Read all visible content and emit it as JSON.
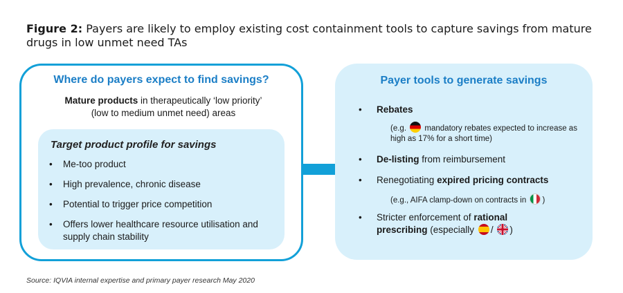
{
  "figure": {
    "label": "Figure 2:",
    "title": "Payers are likely to employ existing cost containment tools to capture savings from mature drugs in low unmet need TAs"
  },
  "left_panel": {
    "heading": "Where do payers expect to find savings?",
    "desc_bold": "Mature products",
    "desc_rest": " in therapeutically ‘low priority’ (low to medium unmet need) areas",
    "inner": {
      "heading": "Target product profile for savings",
      "items": [
        "Me-too product",
        "High prevalence, chronic disease",
        "Potential to trigger price competition",
        "Offers lower healthcare resource utilisation and supply chain stability"
      ]
    }
  },
  "right_panel": {
    "heading": "Payer tools to generate savings",
    "rebates": {
      "label": "Rebates",
      "sub_pre": "(e.g. ",
      "sub_post": " mandatory rebates expected to increase as high as 17% for a short time)"
    },
    "delisting": {
      "bold": "De-listing",
      "rest": " from reimbursement"
    },
    "renegotiating": {
      "pre": "Renegotiating ",
      "bold": "expired pricing contracts",
      "sub_pre": "(e.g., AIFA clamp-down on contracts in ",
      "sub_post": ")"
    },
    "stricter": {
      "pre": "Stricter enforcement of ",
      "bold": "rational prescribing",
      "mid": " (especially ",
      "sep": "/ ",
      "post": ")"
    }
  },
  "source": "Source: IQVIA internal expertise and primary payer research May 2020",
  "colors": {
    "accent_blue": "#1b7ec6",
    "border_blue": "#12a0d8",
    "panel_fill": "#d8f0fb"
  }
}
